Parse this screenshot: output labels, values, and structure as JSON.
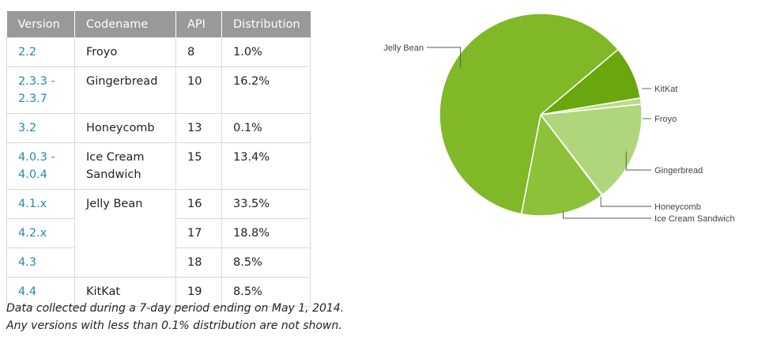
{
  "table": {
    "headers": [
      "Version",
      "Codename",
      "API",
      "Distribution"
    ],
    "rows": [
      {
        "version": "2.2",
        "codename": "Froyo",
        "api": "8",
        "distribution": "1.0%"
      },
      {
        "version": "2.3.3 - 2.3.7",
        "codename": "Gingerbread",
        "api": "10",
        "distribution": "16.2%"
      },
      {
        "version": "3.2",
        "codename": "Honeycomb",
        "api": "13",
        "distribution": "0.1%"
      },
      {
        "version": "4.0.3 - 4.0.4",
        "codename": "Ice Cream Sandwich",
        "api": "15",
        "distribution": "13.4%"
      },
      {
        "version": "4.1.x",
        "codename": "Jelly Bean",
        "api": "16",
        "distribution": "33.5%"
      },
      {
        "version": "4.2.x",
        "codename": "",
        "api": "17",
        "distribution": "18.8%"
      },
      {
        "version": "4.3",
        "codename": "",
        "api": "18",
        "distribution": "8.5%"
      },
      {
        "version": "4.4",
        "codename": "KitKat",
        "api": "19",
        "distribution": "8.5%"
      }
    ]
  },
  "note": {
    "line1": "Data collected during a 7-day period ending on May 1, 2014.",
    "line2": "Any versions with less than 0.1% distribution are not shown."
  },
  "chart_data": {
    "type": "pie",
    "slices": [
      {
        "label": "KitKat",
        "value": 8.5,
        "color": "#6aa70e"
      },
      {
        "label": "Froyo",
        "value": 1.0,
        "color": "#bcdb87"
      },
      {
        "label": "Gingerbread",
        "value": 16.2,
        "color": "#b0d67c"
      },
      {
        "label": "Honeycomb",
        "value": 0.1,
        "color": "#9fcb54"
      },
      {
        "label": "Ice Cream Sandwich",
        "value": 13.4,
        "color": "#8dc13a"
      },
      {
        "label": "Jelly Bean",
        "value": 60.8,
        "color": "#80b828"
      }
    ]
  }
}
